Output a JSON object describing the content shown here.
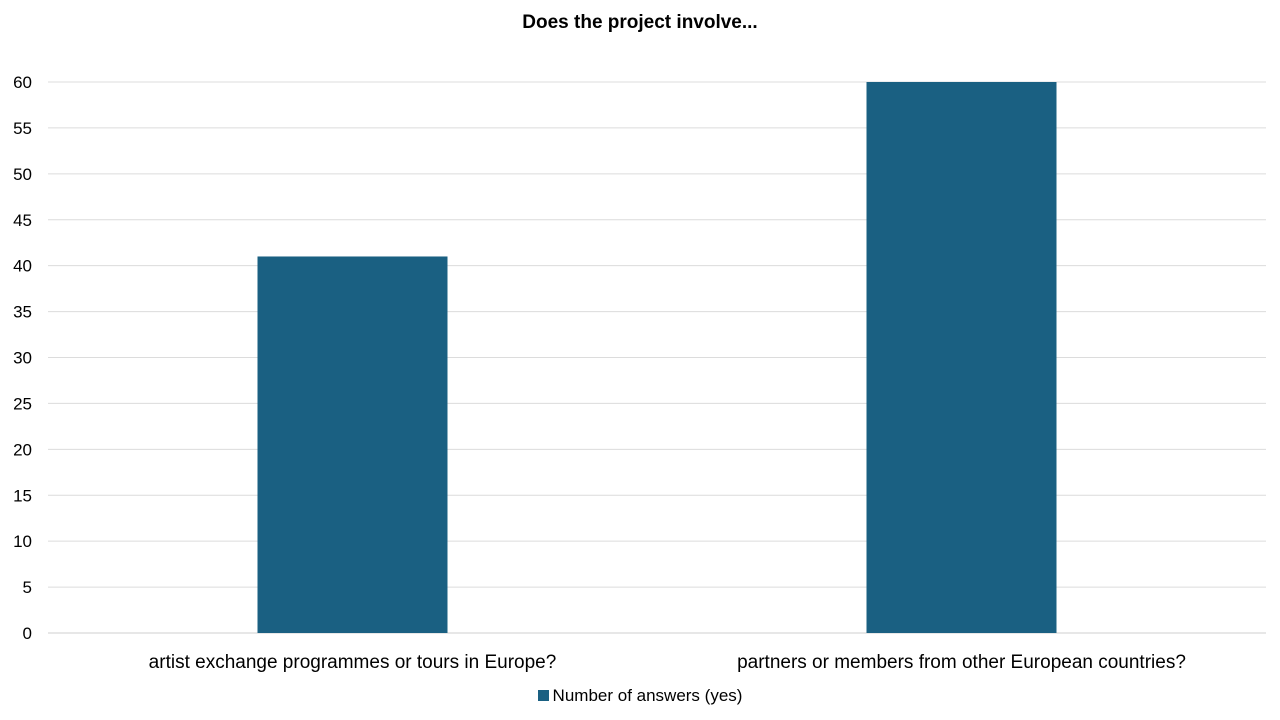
{
  "chart_data": {
    "type": "bar",
    "title": "Does the project involve...",
    "categories": [
      "artist exchange programmes or tours in Europe?",
      "partners or members from other European countries?"
    ],
    "series": [
      {
        "name": "Number of answers (yes)",
        "values": [
          41,
          60
        ],
        "color": "#1a6082"
      }
    ],
    "ylim": [
      0,
      60
    ],
    "yticks": [
      0,
      5,
      10,
      15,
      20,
      25,
      30,
      35,
      40,
      45,
      50,
      55,
      60
    ],
    "grid": true,
    "legend_position": "bottom"
  }
}
